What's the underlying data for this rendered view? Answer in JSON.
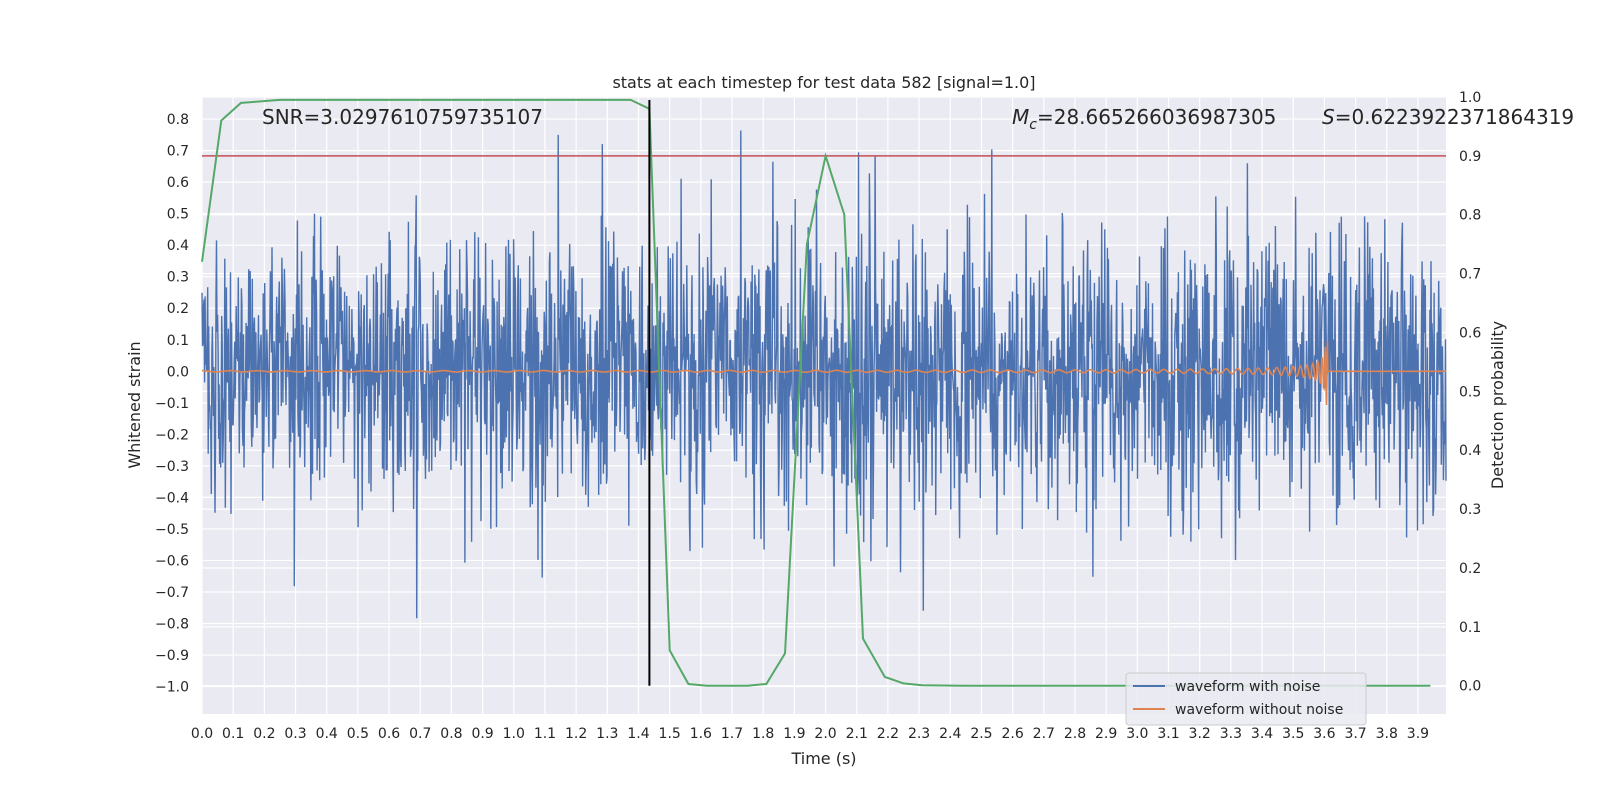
{
  "chart_data": {
    "type": "line",
    "title": "stats at each timestep for test data 582 [signal=1.0]",
    "xlabel": "Time (s)",
    "ylabel": "Whitened strain",
    "y2label": "Detection probability",
    "xlim": [
      0.0,
      3.99
    ],
    "ylim": [
      -1.087,
      0.87
    ],
    "y2lim": [
      -0.048,
      1.0
    ],
    "x_ticks": [
      "0.0",
      "0.1",
      "0.2",
      "0.3",
      "0.4",
      "0.5",
      "0.6",
      "0.7",
      "0.8",
      "0.9",
      "1.0",
      "1.1",
      "1.2",
      "1.3",
      "1.4",
      "1.5",
      "1.6",
      "1.7",
      "1.8",
      "1.9",
      "2.0",
      "2.1",
      "2.2",
      "2.3",
      "2.4",
      "2.5",
      "2.6",
      "2.7",
      "2.8",
      "2.9",
      "3.0",
      "3.1",
      "3.2",
      "3.3",
      "3.4",
      "3.5",
      "3.6",
      "3.7",
      "3.8",
      "3.9"
    ],
    "y_ticks": [
      "0.8",
      "0.7",
      "0.6",
      "0.5",
      "0.4",
      "0.3",
      "0.2",
      "0.1",
      "0.0",
      "−0.1",
      "−0.2",
      "−0.3",
      "−0.4",
      "−0.5",
      "−0.6",
      "−0.7",
      "−0.8",
      "−0.9",
      "−1.0"
    ],
    "y2_ticks": [
      "1.0",
      "0.9",
      "0.8",
      "0.7",
      "0.6",
      "0.5",
      "0.4",
      "0.3",
      "0.2",
      "0.1",
      "0.0"
    ],
    "annotations": {
      "snr": "SNR=3.0297610759735107",
      "mc_symbol": "M",
      "mc_sub": "c",
      "mc_value": "=28.665266036987305",
      "s_symbol": "S",
      "s_value": "=0.6223922371864319"
    },
    "threshold": {
      "value": 0.9,
      "axis": "y2",
      "color": "#c44e52"
    },
    "marker_time": 1.435,
    "grid": true,
    "legend": {
      "placement": "lower-right",
      "entries": [
        {
          "label": "waveform with noise",
          "color": "#4c72b0"
        },
        {
          "label": "waveform without noise",
          "color": "#dd8452"
        }
      ]
    },
    "series": [
      {
        "name": "waveform with noise",
        "axis": "y",
        "color": "#4c72b0",
        "kind": "noise",
        "amplitude_range": [
          -1.0,
          0.78
        ]
      },
      {
        "name": "waveform without noise",
        "axis": "y",
        "color": "#dd8452",
        "kind": "chirp",
        "merger_time": 3.61,
        "peak_amplitude": 0.16
      },
      {
        "axis": "y2",
        "color": "#55a868",
        "x": [
          0.0,
          0.062,
          0.125,
          0.25,
          0.5,
          1.0,
          1.375,
          1.435,
          1.5,
          1.56,
          1.62,
          1.75,
          1.81,
          1.87,
          1.94,
          2.0,
          2.06,
          2.12,
          2.19,
          2.25,
          2.31,
          2.44,
          3.0,
          3.5,
          3.94
        ],
        "values": [
          0.72,
          0.96,
          0.99,
          0.995,
          0.995,
          0.995,
          0.995,
          0.98,
          0.06,
          0.003,
          0.0,
          0.0,
          0.003,
          0.055,
          0.75,
          0.9,
          0.8,
          0.08,
          0.015,
          0.004,
          0.001,
          0.0,
          0.0,
          0.0,
          0.0
        ]
      }
    ]
  }
}
